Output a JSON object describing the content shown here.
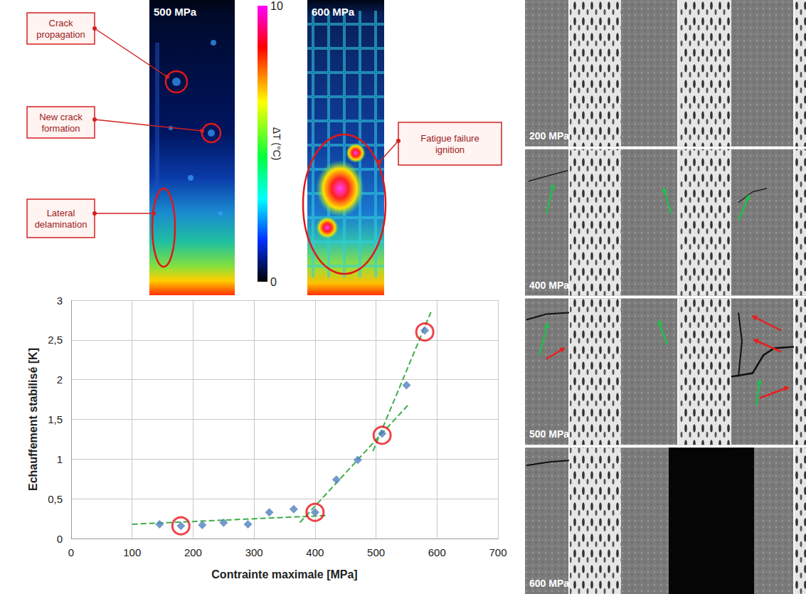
{
  "thermal_panel": {
    "images": [
      {
        "label": "500 MPa",
        "annotations": [
          "Crack propagation",
          "New crack formation",
          "Lateral delamination"
        ]
      },
      {
        "label": "600 MPa",
        "annotations": [
          "Fatigue failure ignition"
        ]
      }
    ],
    "colorbar": {
      "label": "ΔT (°C)",
      "range": [
        0,
        10
      ],
      "ticks": [
        0,
        10
      ]
    }
  },
  "micrographs": [
    {
      "label": "200 MPa"
    },
    {
      "label": "400 MPa"
    },
    {
      "label": "500 MPa"
    },
    {
      "label": "600 MPa"
    }
  ],
  "chart_data": {
    "type": "scatter",
    "x_label": "Contrainte maximale [MPa]",
    "y_label": "Echauffement stabilisé [K]",
    "xlim": [
      0,
      700
    ],
    "xticks": [
      0,
      100,
      200,
      300,
      400,
      500,
      600,
      700
    ],
    "ylim": [
      0,
      3
    ],
    "yticks": [
      0,
      {
        "value": 0.5,
        "label": "0,5"
      },
      1,
      {
        "value": 1.5,
        "label": "1,5"
      },
      2,
      {
        "value": 2.5,
        "label": "2,5"
      },
      3
    ],
    "grid": true,
    "series": [
      {
        "type": "line",
        "line_style": "dashed",
        "color": "#3fae49",
        "x": [
          100,
          420
        ],
        "values": [
          0.18,
          0.29
        ]
      },
      {
        "type": "line",
        "line_style": "dashed",
        "color": "#3fae49",
        "x": [
          375,
          555
        ],
        "values": [
          0.2,
          1.7
        ]
      },
      {
        "type": "line",
        "line_style": "dashed",
        "color": "#3fae49",
        "x": [
          495,
          590
        ],
        "values": [
          1.1,
          2.85
        ]
      },
      {
        "type": "scatter",
        "marker": "diamond",
        "color": "#4f81bd",
        "x": [
          145,
          180,
          215,
          250,
          290,
          325,
          365,
          400,
          435,
          470,
          510,
          550,
          580
        ],
        "values": [
          0.18,
          0.16,
          0.17,
          0.2,
          0.18,
          0.33,
          0.37,
          0.33,
          0.74,
          0.99,
          1.32,
          1.93,
          2.62
        ]
      },
      {
        "type": "scatter",
        "marker": "emptyCircle",
        "color": "#e8141b",
        "x": [
          180,
          400,
          510,
          580
        ],
        "values": [
          0.16,
          0.33,
          1.3,
          2.6
        ]
      }
    ]
  }
}
